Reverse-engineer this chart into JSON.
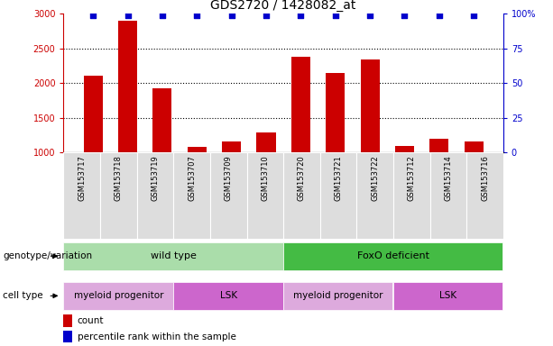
{
  "title": "GDS2720 / 1428082_at",
  "samples": [
    "GSM153717",
    "GSM153718",
    "GSM153719",
    "GSM153707",
    "GSM153709",
    "GSM153710",
    "GSM153720",
    "GSM153721",
    "GSM153722",
    "GSM153712",
    "GSM153714",
    "GSM153716"
  ],
  "counts": [
    2100,
    2900,
    1920,
    1080,
    1150,
    1290,
    2380,
    2140,
    2340,
    1090,
    1195,
    1155
  ],
  "percentile_ranks": [
    99,
    99,
    99,
    99,
    99,
    99,
    99,
    99,
    99,
    99,
    99,
    99
  ],
  "ylim_left": [
    1000,
    3000
  ],
  "ylim_right": [
    0,
    100
  ],
  "yticks_left": [
    1000,
    1500,
    2000,
    2500,
    3000
  ],
  "yticks_right": [
    0,
    25,
    50,
    75,
    100
  ],
  "bar_color": "#cc0000",
  "dot_color": "#0000cc",
  "tick_area_color": "#dddddd",
  "genotype_groups": [
    {
      "label": "wild type",
      "start": 0,
      "end": 6,
      "color": "#aaddaa"
    },
    {
      "label": "FoxO deficient",
      "start": 6,
      "end": 12,
      "color": "#44bb44"
    }
  ],
  "cell_type_groups": [
    {
      "label": "myeloid progenitor",
      "start": 0,
      "end": 3,
      "color": "#ddaadd"
    },
    {
      "label": "LSK",
      "start": 3,
      "end": 6,
      "color": "#cc66cc"
    },
    {
      "label": "myeloid progenitor",
      "start": 6,
      "end": 9,
      "color": "#ddaadd"
    },
    {
      "label": "LSK",
      "start": 9,
      "end": 12,
      "color": "#cc66cc"
    }
  ],
  "legend_items": [
    {
      "label": "count",
      "color": "#cc0000"
    },
    {
      "label": "percentile rank within the sample",
      "color": "#0000cc"
    }
  ],
  "title_fontsize": 10,
  "tick_fontsize": 7,
  "sample_fontsize": 6,
  "annot_fontsize": 7.5,
  "legend_fontsize": 7.5
}
